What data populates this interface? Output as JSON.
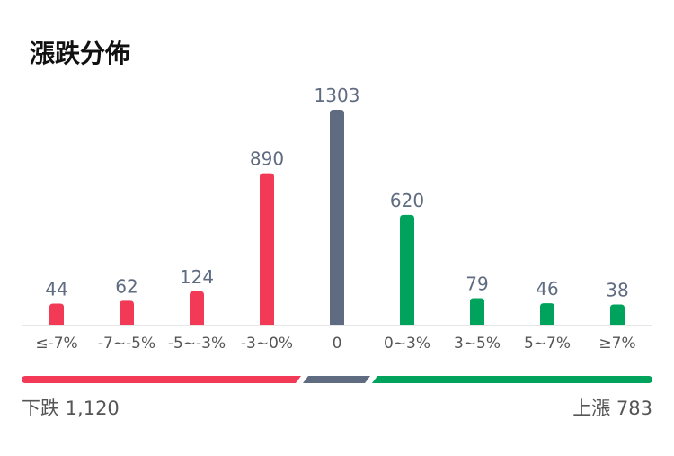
{
  "title": "漲跌分佈",
  "chart_data": {
    "type": "bar",
    "categories": [
      "≤-7%",
      "-7~-5%",
      "-5~-3%",
      "-3~0%",
      "0",
      "0~3%",
      "3~5%",
      "5~7%",
      "≥7%"
    ],
    "values": [
      44,
      62,
      124,
      890,
      1303,
      620,
      79,
      46,
      38
    ],
    "colors": [
      "#f23a56",
      "#f23a56",
      "#f23a56",
      "#f23a56",
      "#5f6b80",
      "#00a35c",
      "#00a35c",
      "#00a35c",
      "#00a35c"
    ],
    "data_labels": true,
    "grid": false
  },
  "summary": {
    "down_label": "下跌 1,120",
    "up_label": "上漲 783",
    "down_value": 1120,
    "flat_value": 1303,
    "up_value": 783,
    "down_color": "#f23a56",
    "flat_color": "#5f6b80",
    "up_color": "#00a35c"
  }
}
